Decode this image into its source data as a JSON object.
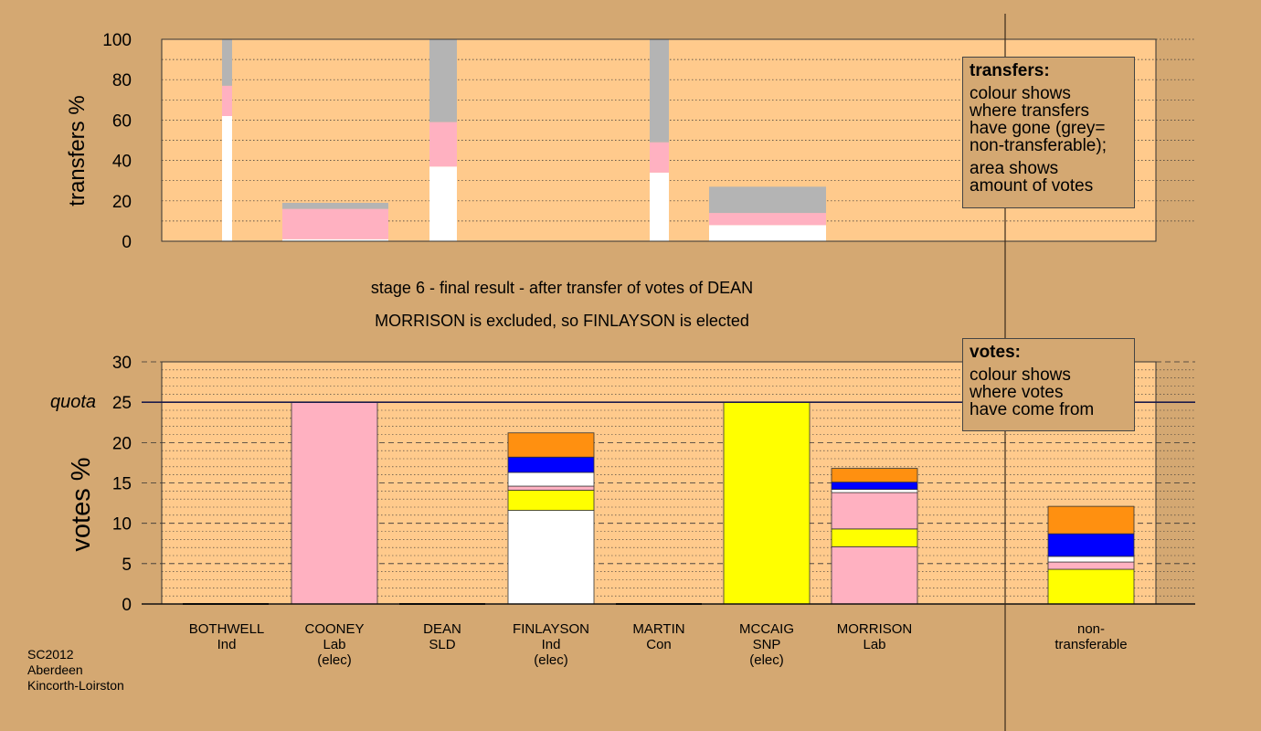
{
  "chart_data": [
    {
      "type": "bar",
      "stacked": true,
      "ylabel": "transfers %",
      "ylim": [
        0,
        100
      ],
      "yticks": [
        0,
        20,
        40,
        60,
        80,
        100
      ],
      "categories": [
        "BOTHWELL",
        "COONEY",
        "DEAN",
        "FINLAYSON",
        "MARTIN",
        "MCCAIG",
        "MORRISON"
      ],
      "segment_colors": {
        "white": "#ffffff",
        "pink": "#ffb1c1",
        "grey": "#b4b4b4"
      },
      "bars": [
        {
          "category": "BOTHWELL",
          "width_share": 1,
          "segments": [
            {
              "color": "white",
              "from": 0,
              "to": 62
            },
            {
              "color": "pink",
              "from": 62,
              "to": 77
            },
            {
              "color": "grey",
              "from": 77,
              "to": 100
            }
          ]
        },
        {
          "category": "COONEY",
          "width_share": 10,
          "segments": [
            {
              "color": "white",
              "from": 0,
              "to": 1
            },
            {
              "color": "pink",
              "from": 1,
              "to": 16
            },
            {
              "color": "grey",
              "from": 16,
              "to": 19
            }
          ]
        },
        {
          "category": "DEAN",
          "width_share": 5,
          "segments": [
            {
              "color": "white",
              "from": 0,
              "to": 37
            },
            {
              "color": "pink",
              "from": 37,
              "to": 59
            },
            {
              "color": "grey",
              "from": 59,
              "to": 100
            }
          ]
        },
        {
          "category": "MARTIN",
          "width_share": 2,
          "segments": [
            {
              "color": "white",
              "from": 0,
              "to": 34
            },
            {
              "color": "pink",
              "from": 34,
              "to": 49
            },
            {
              "color": "grey",
              "from": 49,
              "to": 100
            }
          ]
        },
        {
          "category": "MCCAIG",
          "width_share": 11,
          "segments": [
            {
              "color": "white",
              "from": 0,
              "to": 8
            },
            {
              "color": "pink",
              "from": 8,
              "to": 14
            },
            {
              "color": "grey",
              "from": 14,
              "to": 27
            }
          ]
        }
      ]
    },
    {
      "type": "bar",
      "stacked": true,
      "ylabel": "votes %",
      "ylim": [
        0,
        30
      ],
      "yticks": [
        0,
        5,
        10,
        15,
        20,
        25,
        30
      ],
      "quota": 25,
      "quota_label": "quota",
      "categories": [
        "BOTHWELL",
        "COONEY",
        "DEAN",
        "FINLAYSON",
        "MARTIN",
        "MCCAIG",
        "MORRISON",
        "non-transferable"
      ],
      "segment_colors": {
        "white": "#ffffff",
        "pink": "#ffb1c1",
        "yellow": "#ffff00",
        "blue": "#0000ff",
        "orange": "#ff9010"
      },
      "bars": [
        {
          "category": "BOTHWELL",
          "segments": []
        },
        {
          "category": "COONEY",
          "segments": [
            {
              "color": "pink",
              "from": 0,
              "to": 25
            }
          ]
        },
        {
          "category": "DEAN",
          "segments": []
        },
        {
          "category": "FINLAYSON",
          "segments": [
            {
              "color": "white",
              "from": 0,
              "to": 11.6
            },
            {
              "color": "yellow",
              "from": 11.6,
              "to": 14.1
            },
            {
              "color": "pink",
              "from": 14.1,
              "to": 14.6
            },
            {
              "color": "white",
              "from": 14.6,
              "to": 16.3
            },
            {
              "color": "blue",
              "from": 16.3,
              "to": 18.2
            },
            {
              "color": "orange",
              "from": 18.2,
              "to": 21.2
            }
          ]
        },
        {
          "category": "MARTIN",
          "segments": []
        },
        {
          "category": "MCCAIG",
          "segments": [
            {
              "color": "yellow",
              "from": 0,
              "to": 25
            }
          ]
        },
        {
          "category": "MORRISON",
          "segments": [
            {
              "color": "pink",
              "from": 0,
              "to": 7.1
            },
            {
              "color": "yellow",
              "from": 7.1,
              "to": 9.3
            },
            {
              "color": "pink",
              "from": 9.3,
              "to": 13.8
            },
            {
              "color": "white",
              "from": 13.8,
              "to": 14.2
            },
            {
              "color": "blue",
              "from": 14.2,
              "to": 15.1
            },
            {
              "color": "orange",
              "from": 15.1,
              "to": 16.8
            }
          ]
        },
        {
          "category": "non-transferable",
          "segments": [
            {
              "color": "yellow",
              "from": 0,
              "to": 4.3
            },
            {
              "color": "pink",
              "from": 4.3,
              "to": 5.2
            },
            {
              "color": "white",
              "from": 5.2,
              "to": 5.9
            },
            {
              "color": "blue",
              "from": 5.9,
              "to": 8.7
            },
            {
              "color": "orange",
              "from": 8.7,
              "to": 12.1
            }
          ]
        }
      ]
    }
  ],
  "captions": {
    "line1": "stage 6 - final result - after transfer of votes of DEAN",
    "line2": "MORRISON is excluded, so FINLAYSON is elected"
  },
  "legend_transfers": {
    "title": "transfers:",
    "line1": "colour shows",
    "line2": "where transfers",
    "line3": "have gone (grey=",
    "line4": "non-transferable);",
    "line5": "area shows",
    "line6": "amount of votes"
  },
  "legend_votes": {
    "title": "votes:",
    "line1": "colour shows",
    "line2": "where votes",
    "line3": "have come from"
  },
  "candidates": [
    {
      "name": "BOTHWELL",
      "party": "Ind",
      "status": ""
    },
    {
      "name": "COONEY",
      "party": "Lab",
      "status": "(elec)"
    },
    {
      "name": "DEAN",
      "party": "SLD",
      "status": ""
    },
    {
      "name": "FINLAYSON",
      "party": "Ind",
      "status": "(elec)"
    },
    {
      "name": "MARTIN",
      "party": "Con",
      "status": ""
    },
    {
      "name": "MCCAIG",
      "party": "SNP",
      "status": "(elec)"
    },
    {
      "name": "MORRISON",
      "party": "Lab",
      "status": ""
    },
    {
      "name": "non-",
      "party": "transferable",
      "status": ""
    }
  ],
  "footer": {
    "line1": "SC2012",
    "line2": "Aberdeen",
    "line3": "Kincorth-Loirston"
  },
  "colors": {
    "background": "#d4a872",
    "plot_area": "#ffca8c",
    "quota_line": "#1a1a4a"
  }
}
